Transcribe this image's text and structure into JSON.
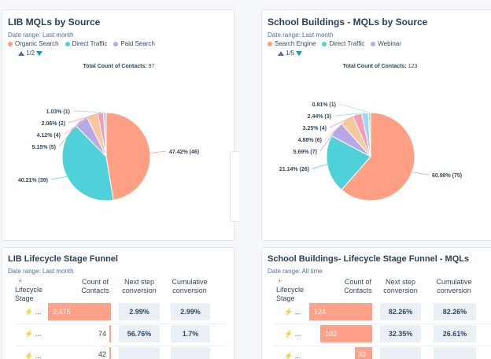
{
  "cards": {
    "lib_source": {
      "title": "LIB MQLs by Source",
      "date_range": "Date range: Last month",
      "legend": [
        {
          "label": "Organic Search",
          "color": "#ff9f84"
        },
        {
          "label": "Direct Traffic",
          "color": "#4fd1d9"
        },
        {
          "label": "Paid Search",
          "color": "#b9a8e8"
        }
      ],
      "pager": "1/2",
      "total_label": "Total Count of Contacts:",
      "total_value": "97"
    },
    "school_source": {
      "title": "School Buildings - MQLs by Source",
      "date_range": "Date range: Last month",
      "legend": [
        {
          "label": "Search Engine",
          "color": "#ff9f84"
        },
        {
          "label": "Direct Traffic",
          "color": "#4fd1d9"
        },
        {
          "label": "Webinar",
          "color": "#b9a8e8"
        }
      ],
      "pager": "1/5",
      "total_label": "Total Count of Contacts:",
      "total_value": "123"
    },
    "lib_funnel": {
      "title": "LIB Lifecycle Stage Funnel",
      "date_range": "Date range: Last month",
      "col_stage": "Lifecycle Stage",
      "col_count": "Count of Contacts",
      "col_next": "Next step conversion",
      "col_cum": "Cumulative conversion",
      "rows": [
        {
          "label": "...",
          "count": "2,475",
          "next": "2.99%",
          "cum": "2.99%"
        },
        {
          "label": "...",
          "count": "74",
          "next": "56.76%",
          "cum": "1.7%"
        },
        {
          "label": "...",
          "count": "42",
          "next": "",
          "cum": ""
        }
      ]
    },
    "school_funnel": {
      "title": "School Buildings- Lifecycle Stage Funnel - MQLs",
      "date_range": "Date range: All time",
      "col_stage": "Lifecycle Stage",
      "col_count": "Count of Contacts",
      "col_next": "Next step conversion",
      "col_cum": "Cumulative conversion",
      "rows": [
        {
          "label": "...",
          "count": "124",
          "next": "82.26%",
          "cum": "82.26%"
        },
        {
          "label": "...",
          "count": "102",
          "next": "32.35%",
          "cum": "26.61%"
        },
        {
          "label": "...",
          "count": "33",
          "next": "",
          "cum": ""
        }
      ]
    }
  },
  "chart_data": [
    {
      "type": "pie",
      "title": "LIB MQLs by Source",
      "slices": [
        {
          "label": "Organic Search",
          "value": 46,
          "percent": 47.42,
          "text": "47.42% (46)",
          "color": "#ff9f84"
        },
        {
          "label": "Direct Traffic",
          "value": 39,
          "percent": 40.21,
          "text": "40.21% (39)",
          "color": "#4fd1d9"
        },
        {
          "label": "Paid Search",
          "value": 5,
          "percent": 5.15,
          "text": "5.15% (5)",
          "color": "#b9a8e8"
        },
        {
          "label": "",
          "value": 4,
          "percent": 4.12,
          "text": "4.12% (4)",
          "color": "#f7c89b"
        },
        {
          "label": "",
          "value": 2,
          "percent": 2.06,
          "text": "2.06% (2)",
          "color": "#f59ab7"
        },
        {
          "label": "",
          "value": 1,
          "percent": 1.03,
          "text": "1.03% (1)",
          "color": "#9fd7f0"
        }
      ]
    },
    {
      "type": "pie",
      "title": "School Buildings - MQLs by Source",
      "slices": [
        {
          "label": "Search Engine",
          "value": 75,
          "percent": 60.98,
          "text": "60.98% (75)",
          "color": "#ff9f84"
        },
        {
          "label": "Direct Traffic",
          "value": 26,
          "percent": 21.14,
          "text": "21.14% (26)",
          "color": "#4fd1d9"
        },
        {
          "label": "Webinar",
          "value": 7,
          "percent": 5.69,
          "text": "5.69% (7)",
          "color": "#b9a8e8"
        },
        {
          "label": "",
          "value": 6,
          "percent": 4.88,
          "text": "4.88% (6)",
          "color": "#f7c89b"
        },
        {
          "label": "",
          "value": 4,
          "percent": 3.25,
          "text": "3.25% (4)",
          "color": "#f59ab7"
        },
        {
          "label": "",
          "value": 3,
          "percent": 2.44,
          "text": "2.44% (3)",
          "color": "#9fd7f0"
        },
        {
          "label": "",
          "value": 1,
          "percent": 0.81,
          "text": "0.81% (1)",
          "color": "#a8e6c0"
        }
      ]
    }
  ]
}
